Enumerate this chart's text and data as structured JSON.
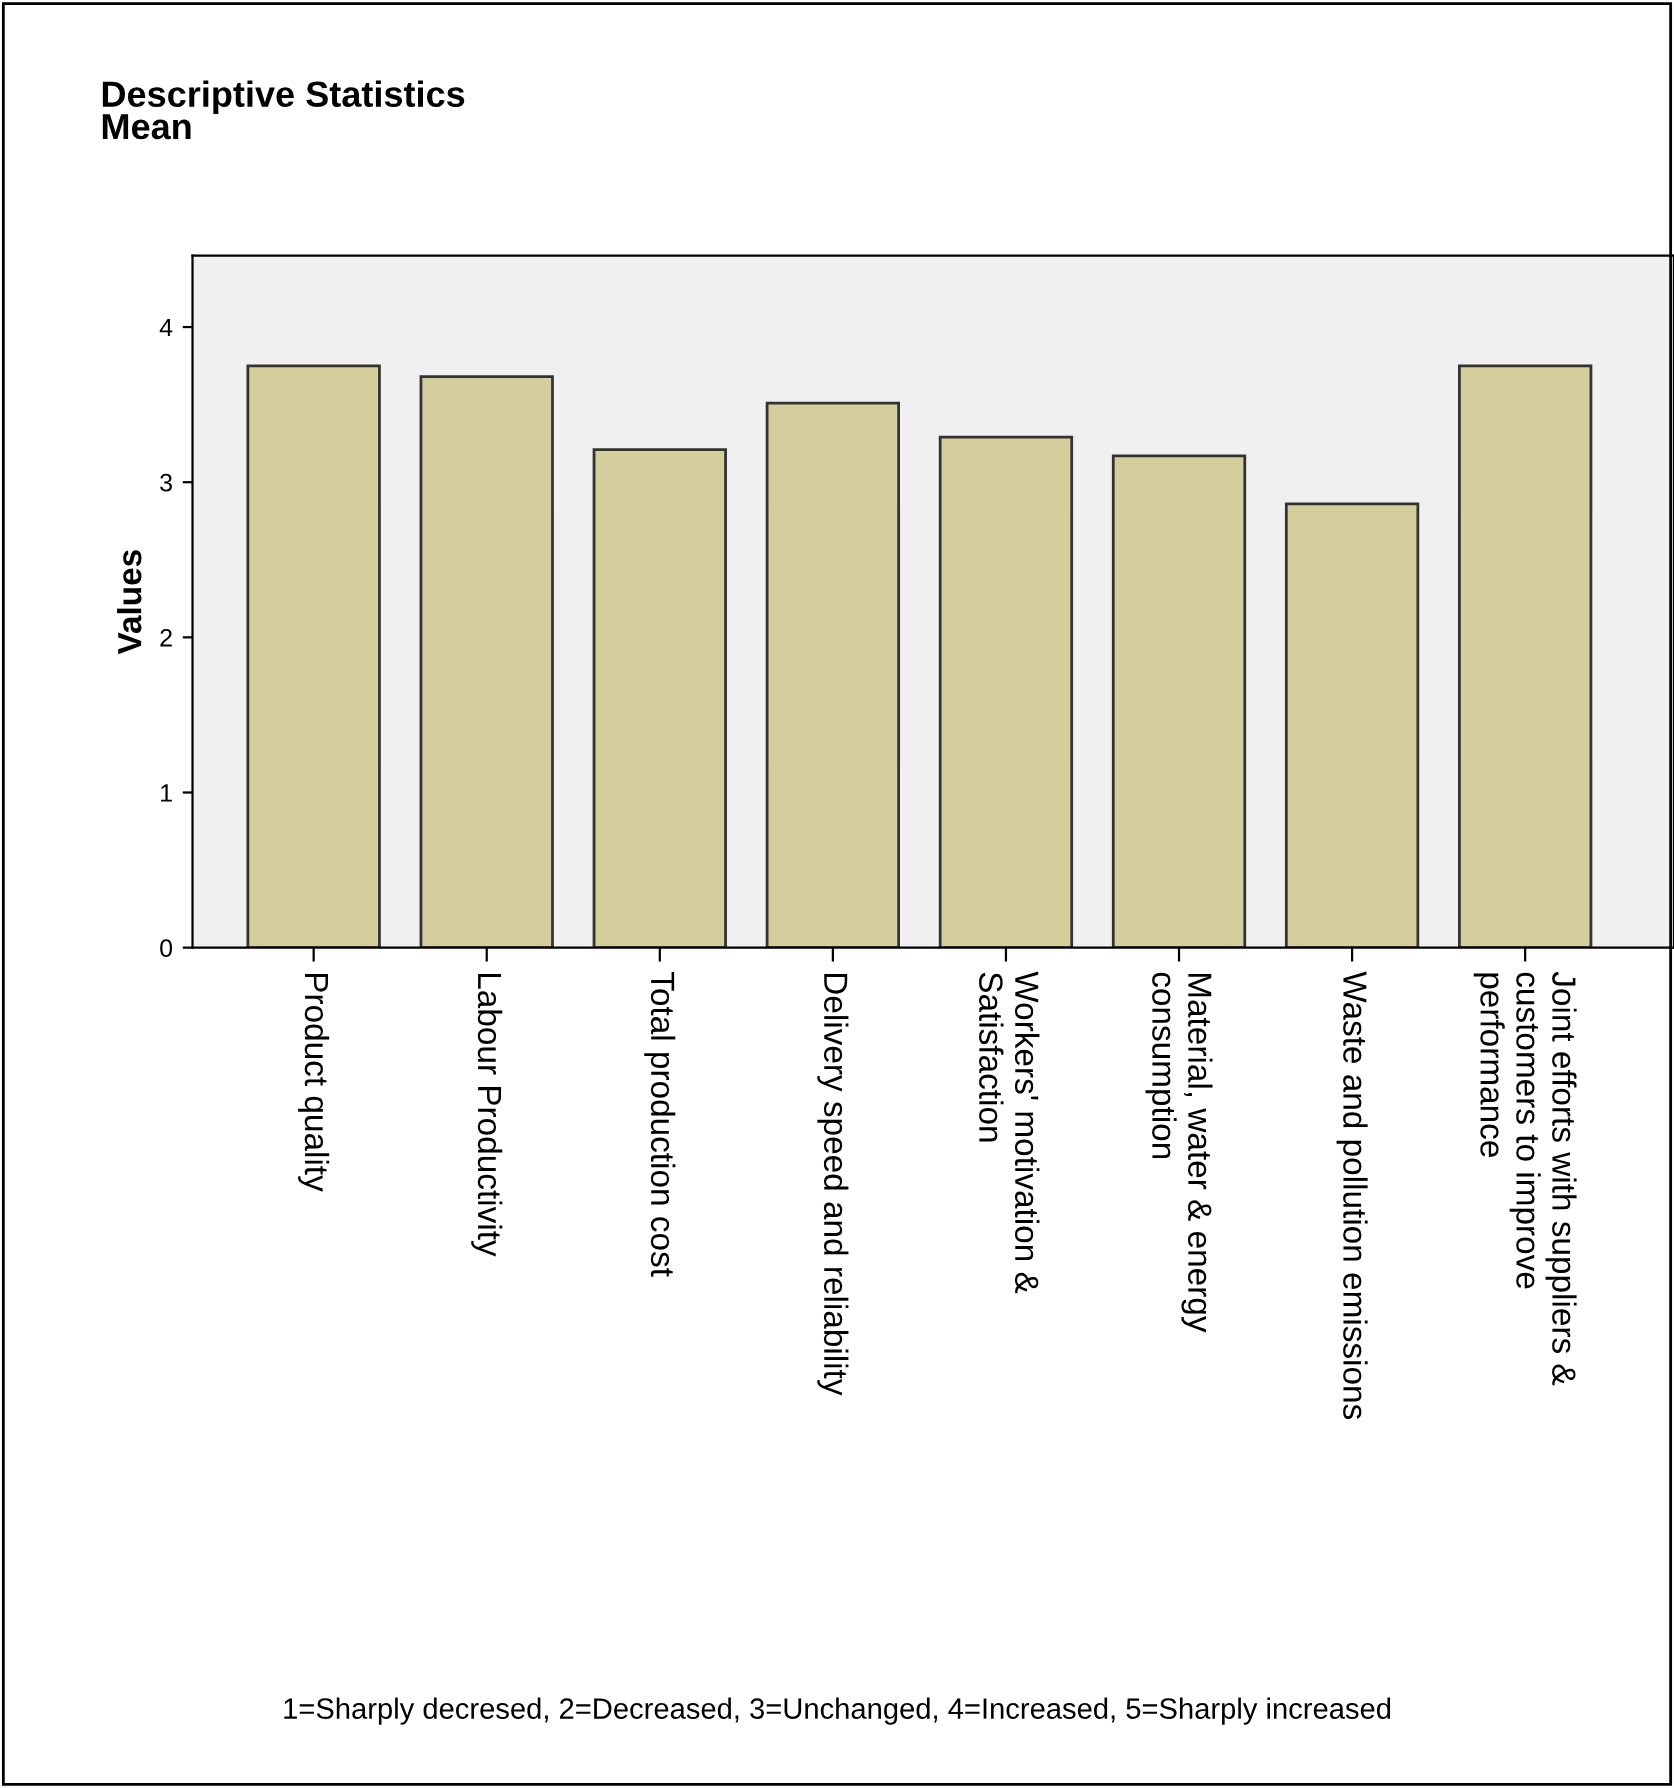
{
  "chart_data": {
    "type": "bar",
    "title": "Descriptive Statistics\nMean",
    "ylabel": "Values",
    "categories": [
      "Product quality",
      "Labour Productivity",
      "Total production cost",
      "Delivery speed and reliability",
      "Workers' motivation &\nSatisfaction",
      "Material, water & energy\nconsumption",
      "Waste and pollution emissions",
      "Joint efforts with suppliers &\ncustomers to improve\nperformance"
    ],
    "values": [
      3.75,
      3.68,
      3.21,
      3.51,
      3.29,
      3.17,
      2.86,
      3.75
    ],
    "color": "#d3ce9b",
    "ylim": [
      0,
      4.46
    ],
    "yticks": [
      0,
      1,
      2,
      3,
      4
    ],
    "grid": false,
    "annotations": [
      "1=Sharply decresed, 2=Decreased, 3=Unchanged, 4=Increased, 5=Sharply increased"
    ]
  }
}
